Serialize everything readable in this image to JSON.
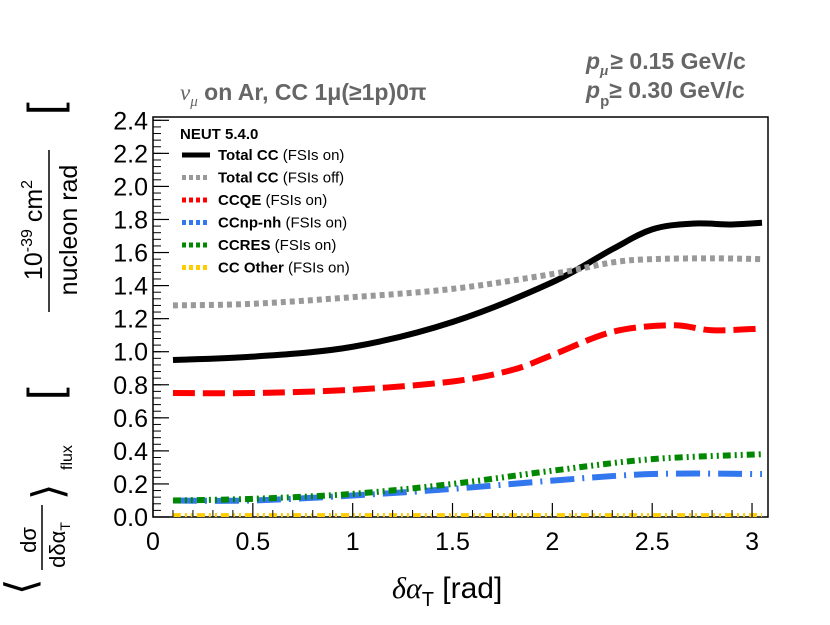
{
  "header": {
    "process_nu": "ν",
    "process_mu_sub": "μ",
    "process_rest": " on Ar, CC 1μ(≥1p)0π",
    "cut_mu_p": "p",
    "cut_mu_sub": "μ",
    "cut_mu_rest": "≥ 0.15 GeV/c",
    "cut_p_p": "p",
    "cut_p_sub": "p",
    "cut_p_rest": "≥ 0.30 GeV/c"
  },
  "chart_data": {
    "type": "line",
    "title": "NEUT 5.4.0",
    "xlabel": "δα_T [rad]",
    "ylabel": "⟨dσ/dδα_T⟩_flux [10^-39 cm^2 / nucleon rad]",
    "xlabel_parts": {
      "main": "δα",
      "sub": "T",
      "unit": " [rad]"
    },
    "ylabel_parts": {
      "bracket_main": "dσ",
      "bracket_den": "dδα",
      "den_sub": "T",
      "flux": "flux",
      "unit_top": "10",
      "unit_exp": "-39",
      "unit_cm": " cm",
      "unit_cm_exp": "2",
      "unit_bottom": "nucleon rad"
    },
    "xlim": [
      0,
      3.08
    ],
    "ylim": [
      0,
      2.42
    ],
    "xticks": [
      "0",
      "0.5",
      "1",
      "1.5",
      "2",
      "2.5",
      "3"
    ],
    "xtick_values": [
      0,
      0.5,
      1,
      1.5,
      2,
      2.5,
      3
    ],
    "yticks": [
      "0.0",
      "0.2",
      "0.4",
      "0.6",
      "0.8",
      "1.0",
      "1.2",
      "1.4",
      "1.6",
      "1.8",
      "2.0",
      "2.2",
      "2.4"
    ],
    "ytick_values": [
      0,
      0.2,
      0.4,
      0.6,
      0.8,
      1.0,
      1.2,
      1.4,
      1.6,
      1.8,
      2.0,
      2.2,
      2.4
    ],
    "legend_position": "top-left",
    "series": [
      {
        "name": "Total CC",
        "note": " (FSIs on)",
        "color": "#000000",
        "dash": "solid",
        "x": [
          0.1,
          0.5,
          1.0,
          1.5,
          2.0,
          2.3,
          2.5,
          2.7,
          2.9,
          3.05
        ],
        "y": [
          0.95,
          0.97,
          1.03,
          1.18,
          1.42,
          1.62,
          1.74,
          1.775,
          1.77,
          1.78
        ]
      },
      {
        "name": "Total CC",
        "note": " (FSIs off)",
        "color": "#999999",
        "dash": "dot",
        "x": [
          0.1,
          0.5,
          1.0,
          1.5,
          2.0,
          2.3,
          2.5,
          2.8,
          3.05
        ],
        "y": [
          1.28,
          1.29,
          1.33,
          1.38,
          1.47,
          1.54,
          1.56,
          1.565,
          1.56
        ]
      },
      {
        "name": "CCQE",
        "note": " (FSIs on)",
        "color": "#ff0000",
        "dash": "dash",
        "x": [
          0.1,
          0.5,
          1.0,
          1.5,
          1.8,
          2.0,
          2.3,
          2.6,
          2.8,
          3.05
        ],
        "y": [
          0.75,
          0.75,
          0.77,
          0.82,
          0.89,
          0.98,
          1.12,
          1.16,
          1.13,
          1.14
        ]
      },
      {
        "name": "CCnp-nh",
        "note": " (FSIs on)",
        "color": "#3377ee",
        "dash": "longdashdot",
        "x": [
          0.1,
          0.5,
          1.0,
          1.5,
          2.0,
          2.5,
          3.05
        ],
        "y": [
          0.1,
          0.1,
          0.13,
          0.17,
          0.22,
          0.26,
          0.26
        ]
      },
      {
        "name": "CCRES",
        "note": " (FSIs on)",
        "color": "#008800",
        "dash": "dashdotdot",
        "x": [
          0.1,
          0.5,
          1.0,
          1.5,
          2.0,
          2.5,
          3.05
        ],
        "y": [
          0.1,
          0.11,
          0.14,
          0.2,
          0.28,
          0.35,
          0.38
        ]
      },
      {
        "name": "CC Other",
        "note": " (FSIs on)",
        "color": "#ffcc00",
        "dash": "dashdotdot",
        "x": [
          0.1,
          1.0,
          2.0,
          3.05
        ],
        "y": [
          0.005,
          0.005,
          0.005,
          0.005
        ]
      }
    ]
  }
}
